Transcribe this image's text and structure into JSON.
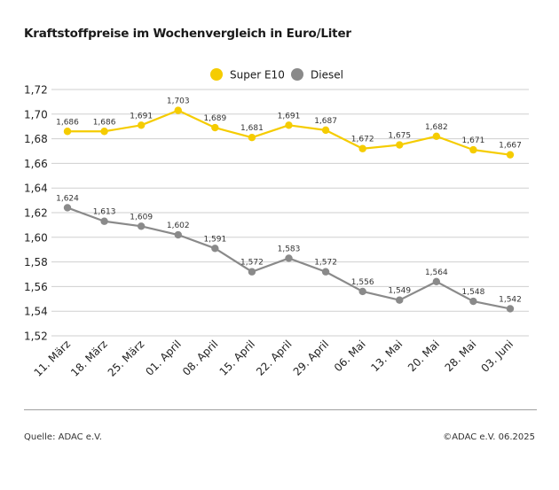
{
  "title": "Kraftstoffpreise im Wochenvergleich in Euro/Liter",
  "footer": {
    "source": "Quelle: ADAC e.V.",
    "copyright": "©ADAC e.V. 06.2025"
  },
  "chart_data": {
    "type": "line",
    "title": "Kraftstoffpreise im Wochenvergleich in Euro/Liter",
    "xlabel": "",
    "ylabel": "",
    "ylim": [
      1.52,
      1.72
    ],
    "yticks": [
      "1,52",
      "1,54",
      "1,56",
      "1,58",
      "1,60",
      "1,62",
      "1,64",
      "1,66",
      "1,68",
      "1,70",
      "1,72"
    ],
    "grid": true,
    "legend_position": "top-center",
    "categories": [
      "11. März",
      "18. März",
      "25. März",
      "01. April",
      "08. April",
      "15. April",
      "22. April",
      "29. April",
      "06. Mai",
      "13. Mai",
      "20. Mai",
      "28. Mai",
      "03. Juni"
    ],
    "series": [
      {
        "name": "Super E10",
        "color": "#f5cc00",
        "values": [
          1.686,
          1.686,
          1.691,
          1.703,
          1.689,
          1.681,
          1.691,
          1.687,
          1.672,
          1.675,
          1.682,
          1.671,
          1.667
        ],
        "labels": [
          "1,686",
          "1,686",
          "1,691",
          "1,703",
          "1,689",
          "1,681",
          "1,691",
          "1,687",
          "1,672",
          "1,675",
          "1,682",
          "1,671",
          "1,667"
        ]
      },
      {
        "name": "Diesel",
        "color": "#8a8a8a",
        "values": [
          1.624,
          1.613,
          1.609,
          1.602,
          1.591,
          1.572,
          1.583,
          1.572,
          1.556,
          1.549,
          1.564,
          1.548,
          1.542
        ],
        "labels": [
          "1,624",
          "1,613",
          "1,609",
          "1,602",
          "1,591",
          "1,572",
          "1,583",
          "1,572",
          "1,556",
          "1,549",
          "1,564",
          "1,548",
          "1,542"
        ]
      }
    ]
  }
}
